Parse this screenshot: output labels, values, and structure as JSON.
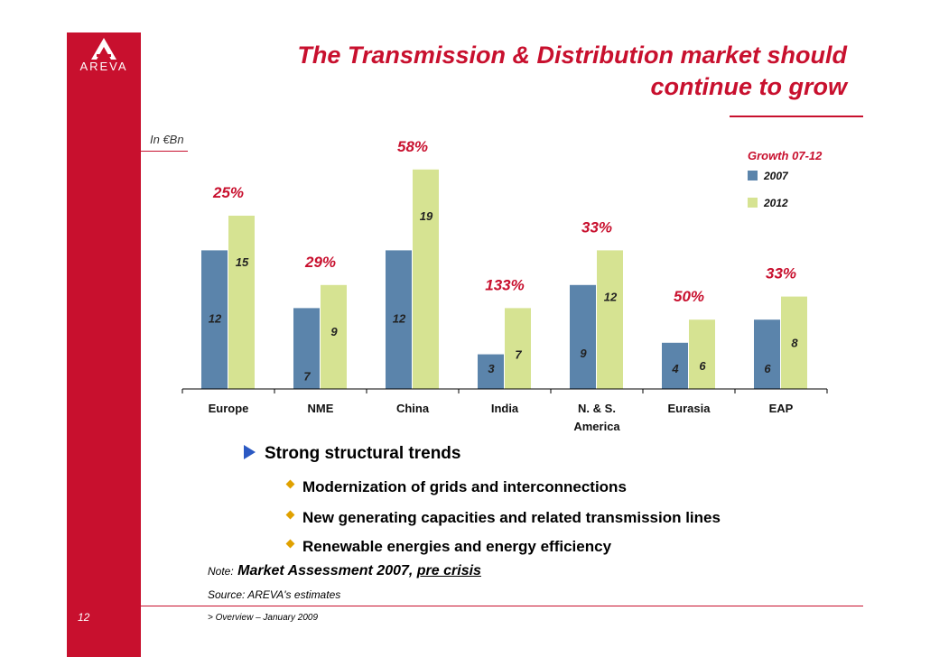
{
  "brand": {
    "logo_text": "AREVA",
    "color": "#c8102e"
  },
  "title": {
    "line1": "The Transmission & Distribution market should",
    "line2": "continue to grow"
  },
  "unit_label": "In €Bn",
  "chart_data": {
    "type": "bar",
    "categories": [
      "Europe",
      "NME",
      "China",
      "India",
      "N. & S.",
      "Eurasia",
      "EAP"
    ],
    "category_line2": [
      "",
      "",
      "",
      "",
      "America",
      "",
      ""
    ],
    "series": [
      {
        "name": "2007",
        "values": [
          12,
          7,
          12,
          3,
          9,
          4,
          6
        ],
        "color": "#5b84ab"
      },
      {
        "name": "2012",
        "values": [
          15,
          9,
          19,
          7,
          12,
          6,
          8
        ],
        "color": "#d6e392"
      }
    ],
    "growth_labels": [
      "25%",
      "29%",
      "58%",
      "133%",
      "33%",
      "50%",
      "33%"
    ],
    "legend_title": "Growth 07-12",
    "legend_position": "top-right",
    "ylim": [
      0,
      20
    ],
    "grid": false
  },
  "bullets": {
    "main": "Strong structural trends",
    "items": [
      "Modernization of grids and interconnections",
      "New generating capacities and related transmission lines",
      "Renewable energies and energy efficiency"
    ]
  },
  "note": {
    "label": "Note:",
    "text": "Market Assessment 2007,",
    "underlined": "pre crisis"
  },
  "source": "Source: AREVA's estimates",
  "footer": {
    "page_number": "12",
    "text": "> Overview – January 2009"
  }
}
